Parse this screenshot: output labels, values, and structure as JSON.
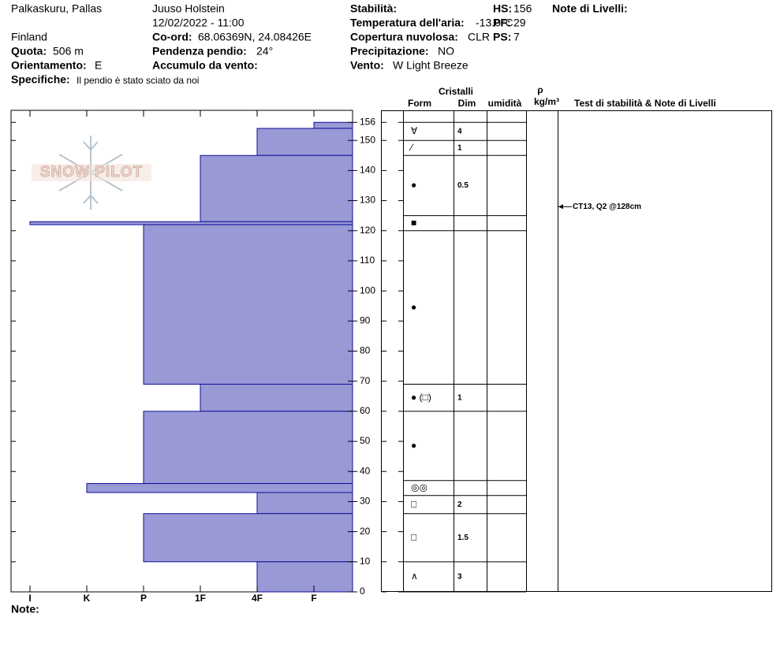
{
  "header": {
    "location": "Palkaskuru, Pallas",
    "country": "Finland",
    "elevation": {
      "label": "Quota:",
      "value": "506 m"
    },
    "aspect": {
      "label": "Orientamento:",
      "value": "E"
    },
    "specifics": {
      "label": "Specifiche:",
      "value": "Il pendio è stato sciato da noi"
    },
    "observer": "Juuso Holstein",
    "datetime": "12/02/2022 - 11:00",
    "coords": {
      "label": "Co-ord:",
      "value": "68.06369N, 24.08426E"
    },
    "slope": {
      "label": "Pendenza pendio:",
      "value": "24°"
    },
    "wind_loading": {
      "label": "Accumulo da vento:"
    },
    "stability": {
      "label": "Stabilità:"
    },
    "air_temp": {
      "label": "Temperatura dell'aria:",
      "value": "-13.0°C"
    },
    "sky": {
      "label": "Copertura nuvolosa:",
      "value": "CLR"
    },
    "precip": {
      "label": "Precipitazione:",
      "value": "NO"
    },
    "wind": {
      "label": "Vento:",
      "value": "W Light Breeze"
    },
    "hs": {
      "label": "HS:",
      "value": 156
    },
    "pf": {
      "label": "PF:",
      "value": 29
    },
    "ps": {
      "label": "PS:",
      "value": 7
    },
    "layer_notes": "Note di Livelli:"
  },
  "logo": "SNOW PILOT",
  "chart_data": {
    "type": "snow-profile",
    "hardness_scale": [
      "I",
      "K",
      "P",
      "1F",
      "4F",
      "F"
    ],
    "ylim": [
      0,
      160
    ],
    "yticks": [
      0,
      10,
      20,
      30,
      40,
      50,
      60,
      70,
      80,
      90,
      100,
      110,
      120,
      130,
      140,
      150,
      156
    ],
    "color": "#9999d6",
    "edge_color": "#10109a",
    "layers": [
      {
        "top": 156,
        "bottom": 154,
        "hardness": "F"
      },
      {
        "top": 154,
        "bottom": 145,
        "hardness": "4F"
      },
      {
        "top": 145,
        "bottom": 123,
        "hardness": "1F"
      },
      {
        "top": 123,
        "bottom": 122,
        "hardness": "I"
      },
      {
        "top": 122,
        "bottom": 69,
        "hardness": "P"
      },
      {
        "top": 69,
        "bottom": 60,
        "hardness": "1F"
      },
      {
        "top": 60,
        "bottom": 36,
        "hardness": "P"
      },
      {
        "top": 36,
        "bottom": 33,
        "hardness": "K"
      },
      {
        "top": 33,
        "bottom": 26,
        "hardness": "4F"
      },
      {
        "top": 26,
        "bottom": 10,
        "hardness": "P"
      },
      {
        "top": 10,
        "bottom": 0,
        "hardness": "4F"
      }
    ]
  },
  "table": {
    "headers": {
      "crystals": "Cristalli",
      "form": "Form",
      "size": "Dim",
      "moisture": "umidità",
      "density": "ρ",
      "density_unit": "kg/m³",
      "tests": "Test di stabilità & Note di Livelli"
    },
    "rows": [
      {
        "top": 156,
        "bottom": 150,
        "form": "∀",
        "size": 4
      },
      {
        "top": 150,
        "bottom": 145,
        "form": "⁄",
        "size": 1
      },
      {
        "top": 145,
        "bottom": 125,
        "form": "●",
        "size": 0.5
      },
      {
        "top": 125,
        "bottom": 120,
        "form": "■"
      },
      {
        "top": 120,
        "bottom": 69,
        "form": "●"
      },
      {
        "top": 69,
        "bottom": 60,
        "form": "● (□)",
        "size": 1
      },
      {
        "top": 60,
        "bottom": 37,
        "form": "●"
      },
      {
        "top": 37,
        "bottom": 32,
        "form": "◎◎"
      },
      {
        "top": 32,
        "bottom": 26,
        "form": "□",
        "size": 2
      },
      {
        "top": 26,
        "bottom": 10,
        "form": "□",
        "size": 1.5
      },
      {
        "top": 10,
        "bottom": 0,
        "form": "∧",
        "size": 3
      }
    ]
  },
  "stability_tests": [
    {
      "label": "CT13, Q2 @128cm",
      "depth": 128
    }
  ],
  "notes": "Note:"
}
